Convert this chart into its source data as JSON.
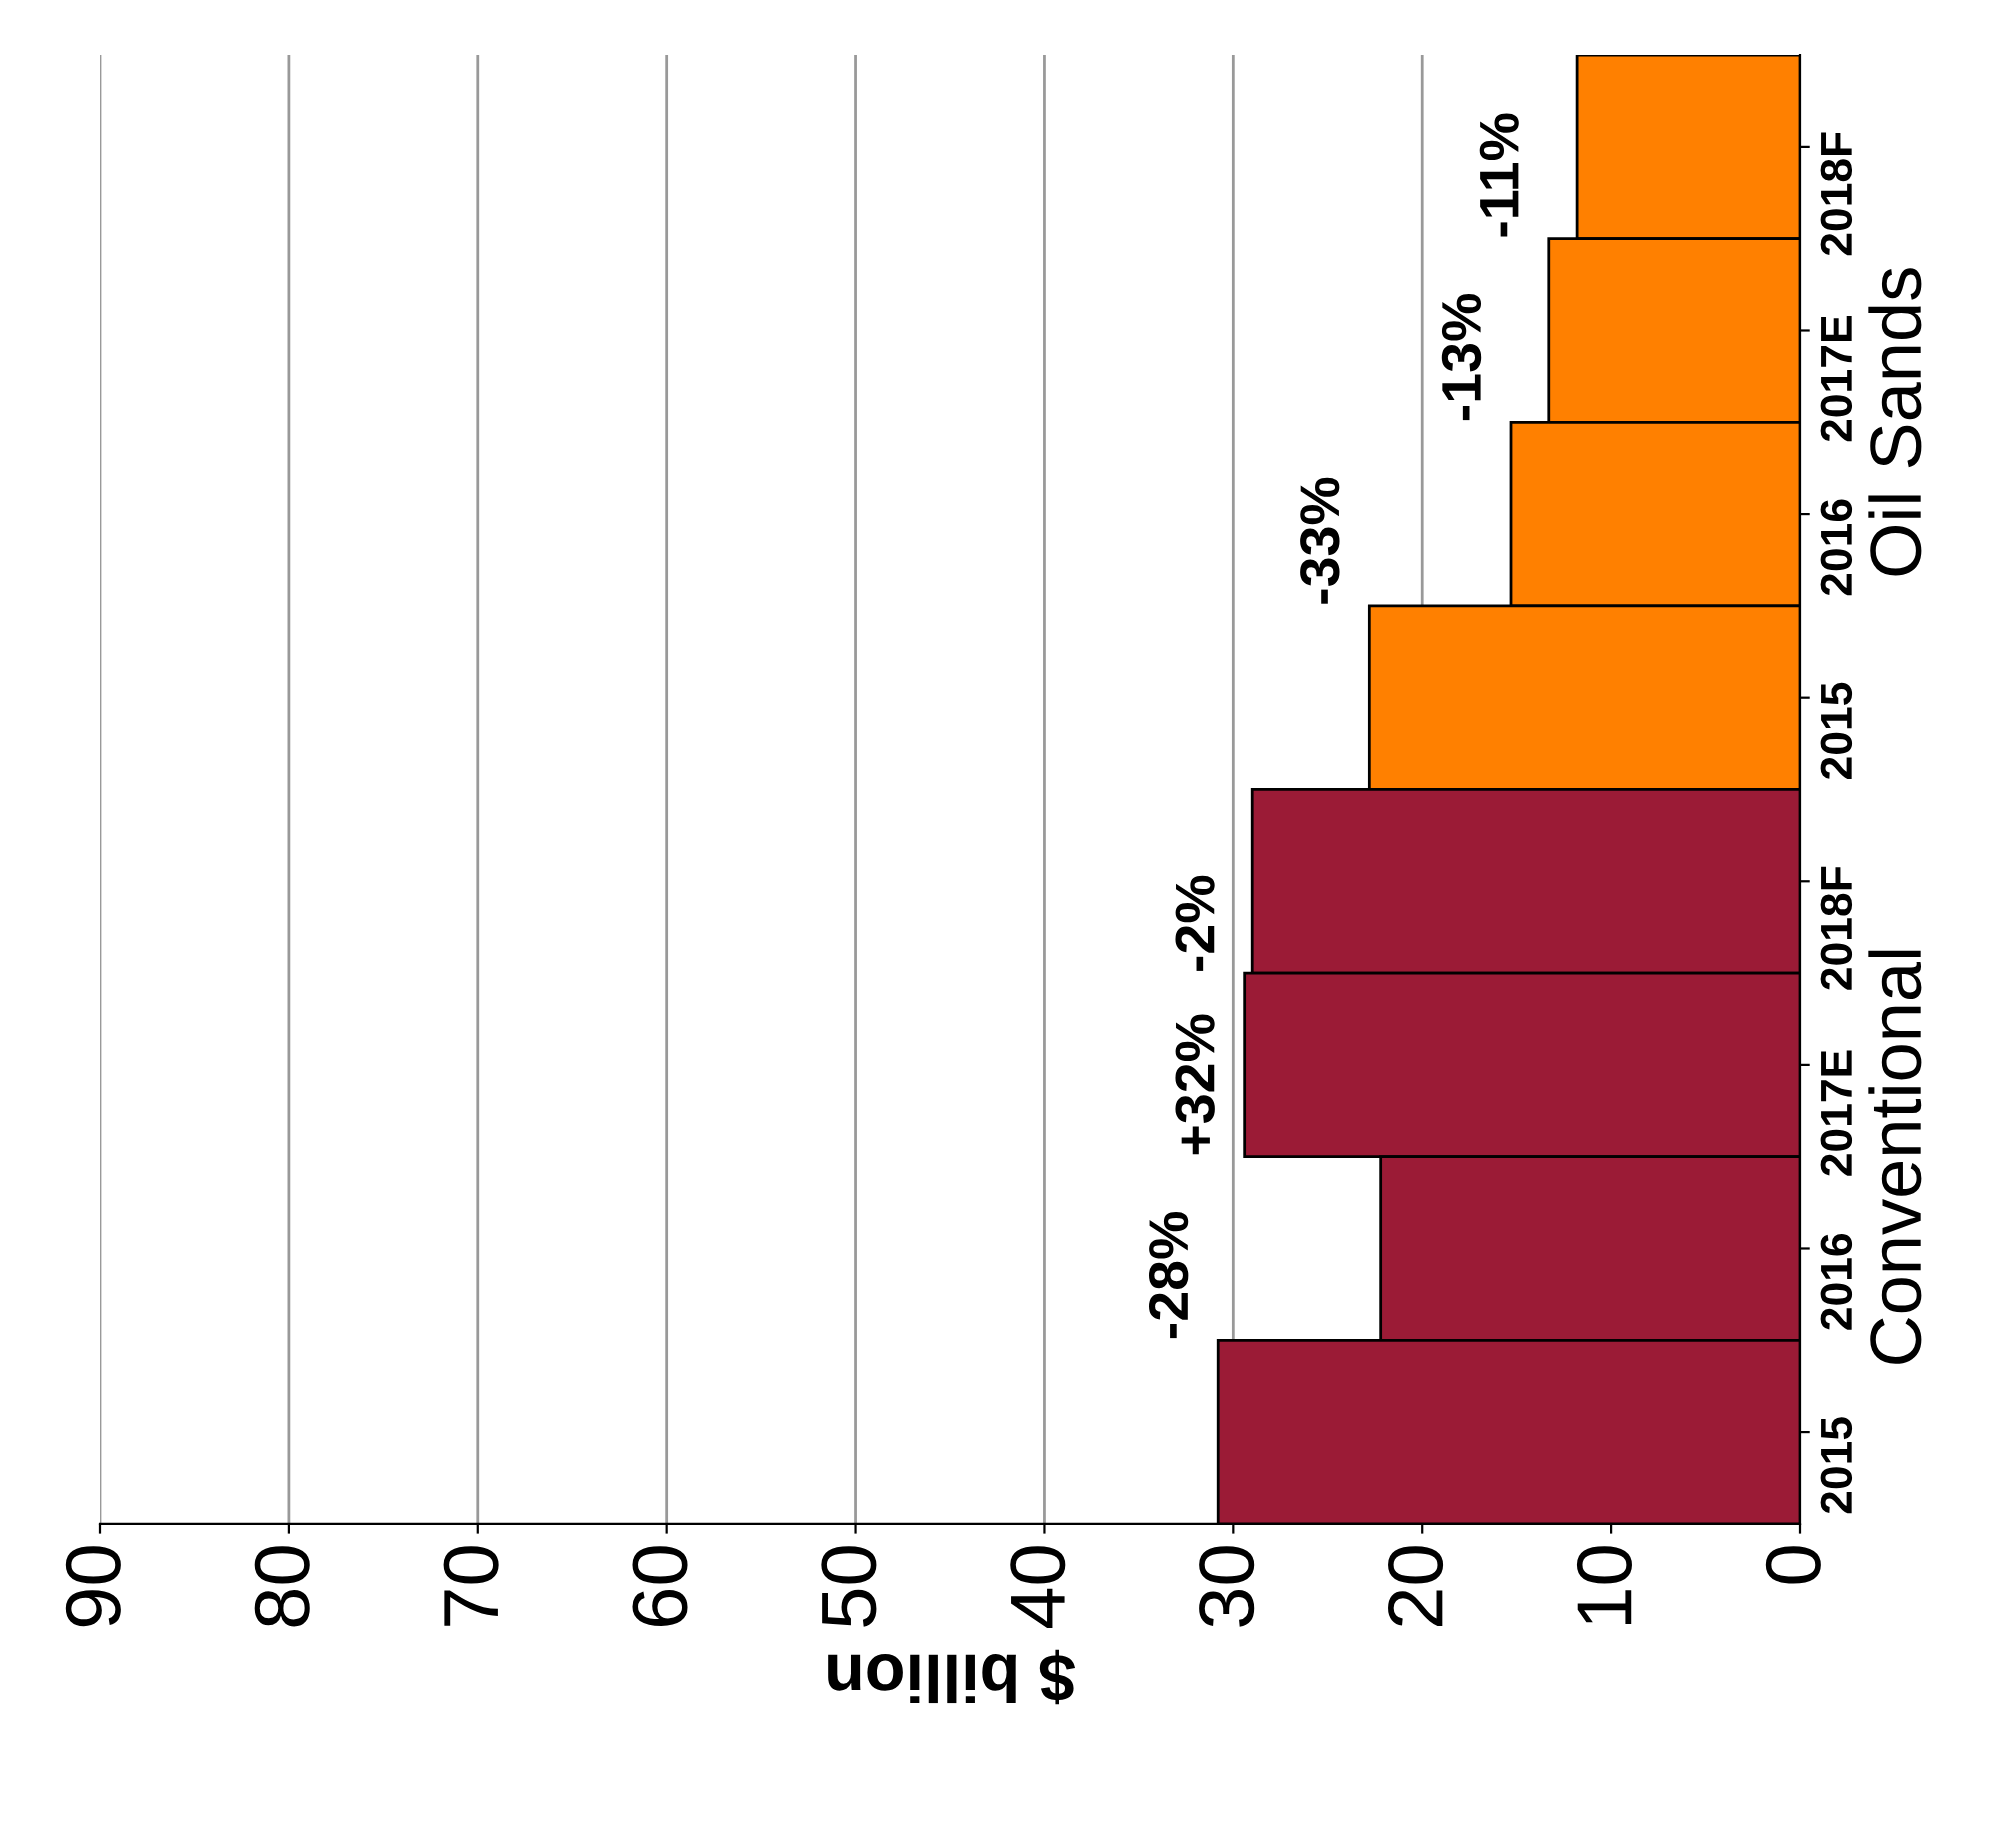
{
  "chart_data": {
    "type": "bar",
    "orientation": "horizontal",
    "xlabel": "$ billion",
    "categories": [
      "2018F",
      "2017E",
      "2016",
      "2015",
      "2018F",
      "2017E",
      "2016",
      "2015"
    ],
    "series": [
      {
        "name": "Oil Sands",
        "color": "#ff8000",
        "values": [
          11.8,
          13.3,
          15.3,
          22.8,
          null,
          null,
          null,
          null
        ]
      },
      {
        "name": "Conventional",
        "color": "#9b1b36",
        "values": [
          null,
          null,
          null,
          null,
          29.0,
          29.4,
          22.2,
          30.8
        ]
      }
    ],
    "annotations": [
      "-11%",
      "-13%",
      "-33%",
      "-2%",
      "+32%",
      "-28%"
    ],
    "xlim": [
      90,
      0
    ],
    "xticks": [
      90,
      80,
      70,
      60,
      50,
      40,
      30,
      20,
      10,
      0
    ],
    "grid": "x",
    "legend": false
  }
}
